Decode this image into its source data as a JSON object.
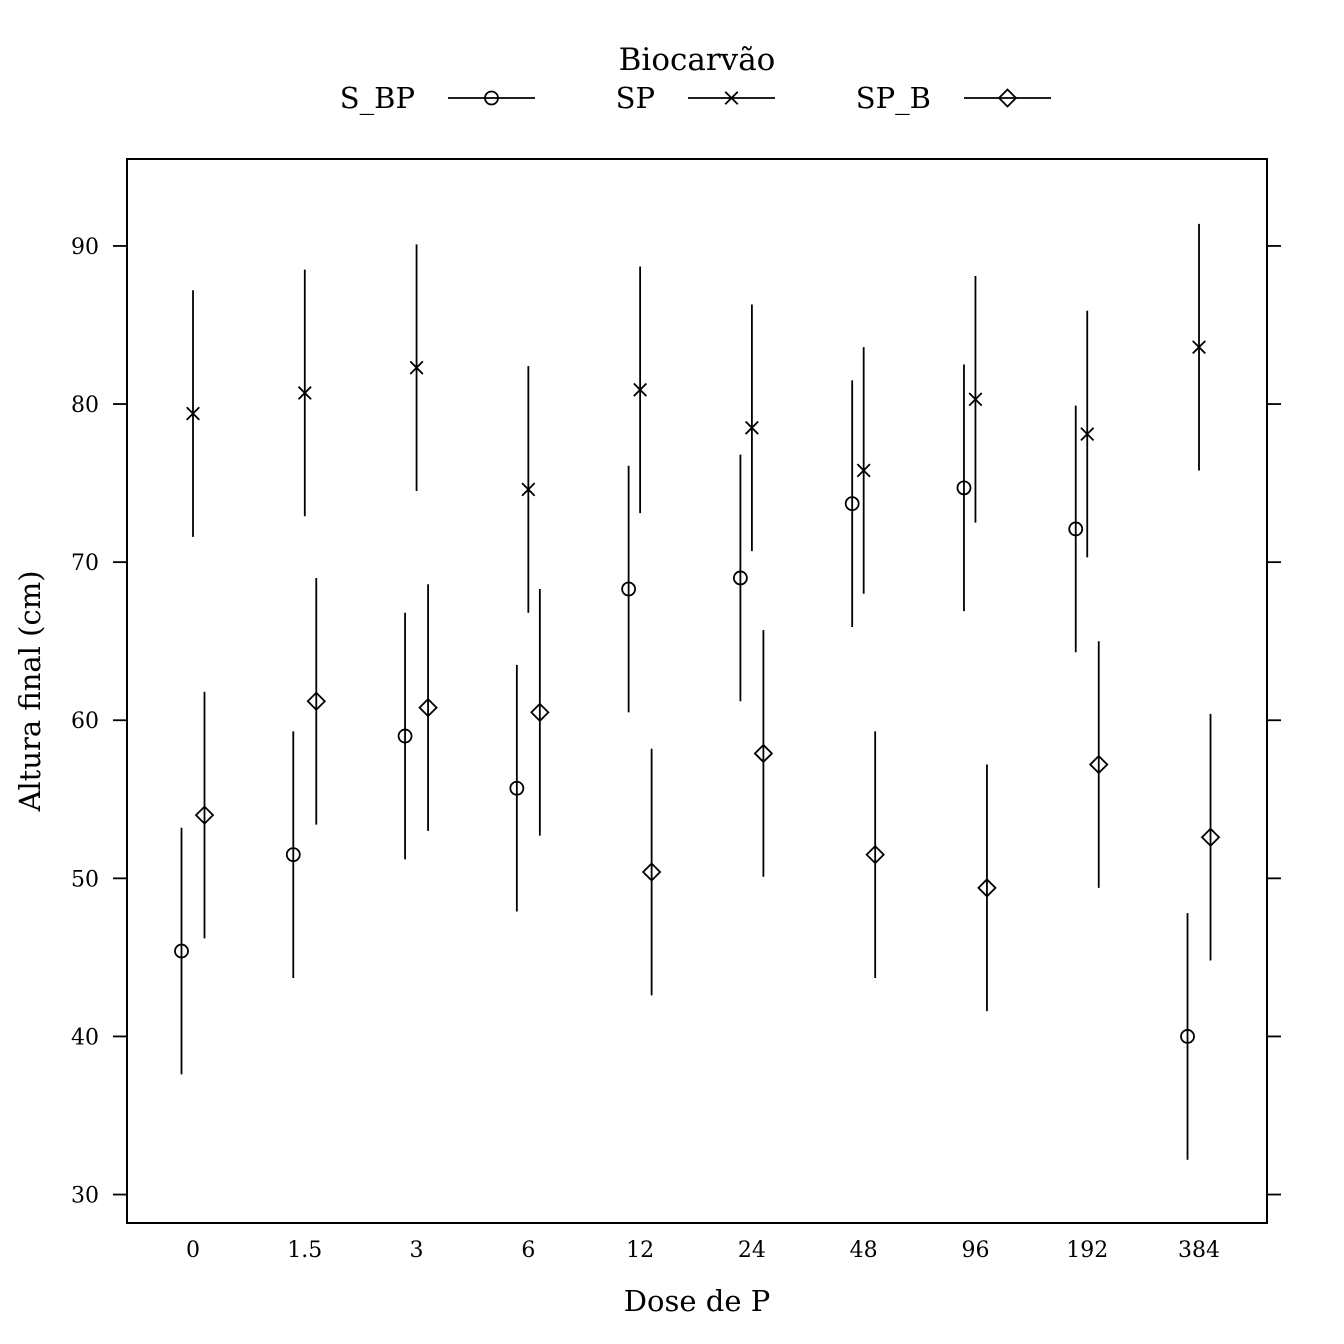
{
  "chart_data": {
    "type": "scatter",
    "title": "",
    "legend_title": "Biocarvão",
    "legend_position": "top",
    "xlabel": "Dose de P",
    "ylabel": "Altura final (cm)",
    "categories": [
      "0",
      "1.5",
      "3",
      "6",
      "12",
      "24",
      "48",
      "96",
      "192",
      "384"
    ],
    "ylim": [
      28.2,
      95.5
    ],
    "yticks": [
      30,
      40,
      50,
      60,
      70,
      80,
      90
    ],
    "grid": false,
    "error_bar_halfwidth": 7.8,
    "series": [
      {
        "name": "S_BP",
        "marker": "circle",
        "values": [
          45.4,
          51.5,
          59.0,
          55.7,
          68.3,
          69.0,
          73.7,
          74.7,
          72.1,
          40.0
        ]
      },
      {
        "name": "SP",
        "marker": "cross",
        "values": [
          79.4,
          80.7,
          82.3,
          74.6,
          80.9,
          78.5,
          75.8,
          80.3,
          78.1,
          83.6
        ]
      },
      {
        "name": "SP_B",
        "marker": "diamond",
        "values": [
          54.0,
          61.2,
          60.8,
          60.5,
          50.4,
          57.9,
          51.5,
          49.4,
          57.2,
          52.6
        ]
      }
    ]
  }
}
